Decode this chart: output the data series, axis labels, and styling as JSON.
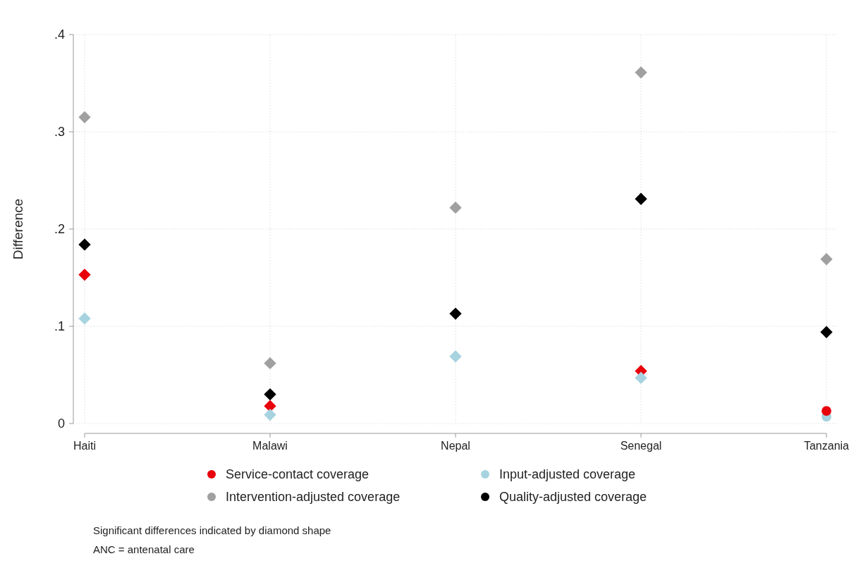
{
  "chart_data": {
    "type": "scatter",
    "ylabel": "Difference",
    "categories": [
      "Haiti",
      "Malawi",
      "Nepal",
      "Senegal",
      "Tanzania"
    ],
    "ylim": [
      0,
      0.4
    ],
    "yticks": [
      {
        "value": 0,
        "label": "0"
      },
      {
        "value": 0.1,
        "label": ".1"
      },
      {
        "value": 0.2,
        "label": ".2"
      },
      {
        "value": 0.3,
        "label": ".3"
      },
      {
        "value": 0.4,
        "label": ".4"
      }
    ],
    "grid": true,
    "legend": "bottom",
    "marker": "diamond",
    "series": [
      {
        "name": "Service-contact coverage",
        "color": "#e8000b",
        "values": [
          0.153,
          0.018,
          null,
          0.054,
          null
        ]
      },
      {
        "name": "Input-adjusted coverage",
        "color": "#a6d3df",
        "values": [
          0.108,
          0.009,
          0.069,
          0.047,
          null
        ]
      },
      {
        "name": "Intervention-adjusted coverage",
        "color": "#a0a0a0",
        "values": [
          0.315,
          0.062,
          0.222,
          0.361,
          0.169
        ]
      },
      {
        "name": "Quality-adjusted coverage",
        "color": "#000000",
        "values": [
          0.184,
          0.03,
          0.113,
          0.231,
          0.094
        ]
      },
      {
        "color": "#a6d3df",
        "marker": "circle",
        "values": [
          null,
          null,
          null,
          null,
          0.007
        ]
      },
      {
        "color": "#e8000b",
        "marker": "circle",
        "values": [
          null,
          null,
          null,
          null,
          0.013
        ]
      }
    ],
    "annotations": [
      "Significant differences indicated by diamond shape",
      "ANC = antenatal care"
    ]
  }
}
